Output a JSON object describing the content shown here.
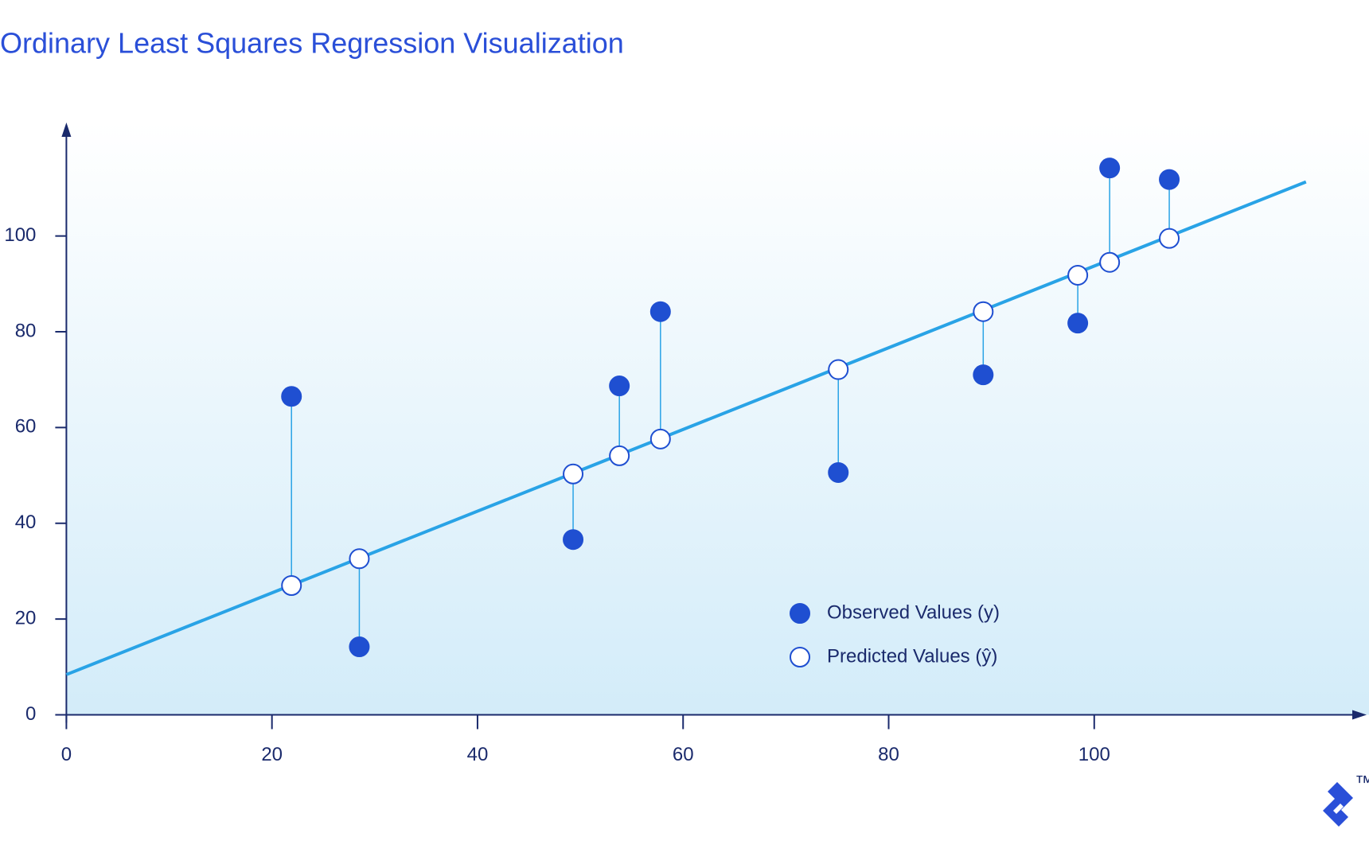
{
  "chart_data": {
    "type": "scatter",
    "title": "Ordinary Least Squares Regression Visualization",
    "xlim": [
      0,
      126.5
    ],
    "ylim": [
      0,
      123.7
    ],
    "xticks": [
      0,
      20,
      40,
      60,
      80,
      100
    ],
    "yticks": [
      0,
      20,
      40,
      60,
      80,
      100
    ],
    "x": [
      21.9,
      28.5,
      49.3,
      53.8,
      57.8,
      75.1,
      89.2,
      98.4,
      101.5,
      107.3
    ],
    "series": [
      {
        "name": "Observed Values (y)",
        "color": "#1f4fd1",
        "values": [
          66.5,
          14.2,
          36.6,
          68.7,
          84.2,
          50.6,
          71.0,
          81.8,
          114.2,
          111.8
        ]
      },
      {
        "name": "Predicted Values (ŷ)",
        "color": "#ffffff",
        "values": [
          27.0,
          32.6,
          50.3,
          54.1,
          57.6,
          72.1,
          84.2,
          91.8,
          94.5,
          99.5
        ]
      }
    ],
    "regression_line": {
      "color": "#29a3e6",
      "x": [
        0,
        120.6
      ],
      "values": [
        8.4,
        111.3
      ]
    },
    "residuals": true,
    "legend_position": "lower right",
    "logo": "™"
  }
}
